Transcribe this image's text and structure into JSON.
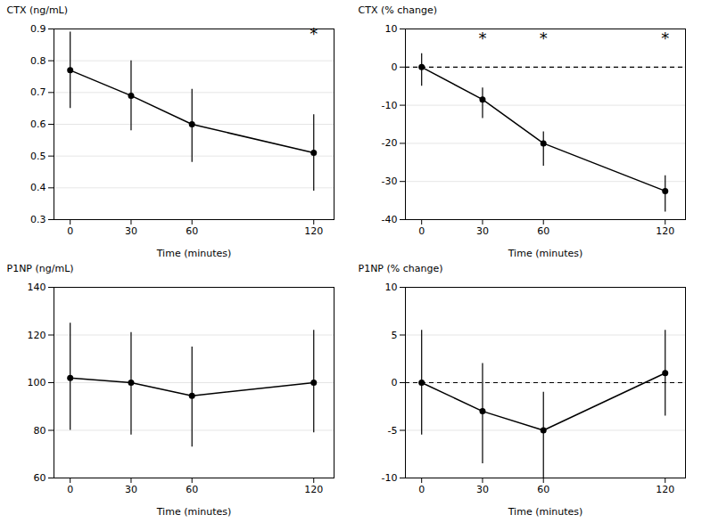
{
  "chart_data": [
    {
      "type": "line",
      "xlabel": "Time (minutes)",
      "ylabel": "CTX (ng/mL)",
      "x": [
        0,
        30,
        60,
        120
      ],
      "values": [
        0.77,
        0.69,
        0.6,
        0.51
      ],
      "error_upper": [
        0.89,
        0.8,
        0.71,
        0.63
      ],
      "error_lower": [
        0.65,
        0.58,
        0.48,
        0.39
      ],
      "color": "#000000",
      "marker": "circle",
      "line_style": "solid",
      "xlim": [
        -8,
        130
      ],
      "xticks": [
        0,
        30,
        60,
        120
      ],
      "ylim": [
        0.3,
        0.9
      ],
      "yticks": [
        0.3,
        0.4,
        0.5,
        0.6,
        0.7,
        0.8,
        0.9
      ],
      "grid": true,
      "annotations": [
        {
          "text": "*",
          "x": 120,
          "y": 0.885,
          "color": "#000000"
        }
      ]
    },
    {
      "type": "line",
      "xlabel": "Time (minutes)",
      "ylabel": "CTX (% change)",
      "x": [
        0,
        30,
        60,
        120
      ],
      "values": [
        0.0,
        -8.5,
        -20.0,
        -32.5
      ],
      "error_upper": [
        3.5,
        -5.5,
        -17.0,
        -28.5
      ],
      "error_lower": [
        -5.0,
        -13.5,
        -26.0,
        -38.0
      ],
      "color": "#000000",
      "marker": "circle",
      "line_style": "solid",
      "xlim": [
        -8,
        130
      ],
      "xticks": [
        0,
        30,
        60,
        120
      ],
      "ylim": [
        -40,
        10
      ],
      "yticks": [
        -40,
        -30,
        -20,
        -10,
        0,
        10
      ],
      "grid": true,
      "reference_lines": [
        {
          "y": 0,
          "line_style": "dashed",
          "color": "#000000"
        }
      ],
      "annotations": [
        {
          "text": "*",
          "x": 30,
          "y": 7.5,
          "color": "#000000"
        },
        {
          "text": "*",
          "x": 60,
          "y": 7.5,
          "color": "#000000"
        },
        {
          "text": "*",
          "x": 120,
          "y": 7.5,
          "color": "#000000"
        }
      ]
    },
    {
      "type": "line",
      "xlabel": "Time (minutes)",
      "ylabel": "P1NP (ng/mL)",
      "x": [
        0,
        30,
        60,
        120
      ],
      "values": [
        102.0,
        100.0,
        94.5,
        100.0
      ],
      "error_upper": [
        125.0,
        121.0,
        115.0,
        122.0
      ],
      "error_lower": [
        80.0,
        78.0,
        73.0,
        79.0
      ],
      "color": "#000000",
      "marker": "circle",
      "line_style": "solid",
      "xlim": [
        -8,
        130
      ],
      "xticks": [
        0,
        30,
        60,
        120
      ],
      "ylim": [
        60,
        140
      ],
      "yticks": [
        60,
        80,
        100,
        120,
        140
      ],
      "grid": true
    },
    {
      "type": "line",
      "xlabel": "Time (minutes)",
      "ylabel": "P1NP (% change)",
      "x": [
        0,
        30,
        60,
        120
      ],
      "values": [
        0.0,
        -3.0,
        -5.0,
        1.0
      ],
      "error_upper": [
        5.5,
        2.0,
        -1.0,
        5.5
      ],
      "error_lower": [
        -5.5,
        -8.5,
        -10.0,
        -3.5
      ],
      "color": "#000000",
      "marker": "circle",
      "line_style": "solid",
      "xlim": [
        -8,
        130
      ],
      "xticks": [
        0,
        30,
        60,
        120
      ],
      "ylim": [
        -10,
        10
      ],
      "yticks": [
        -10,
        -5,
        0,
        5,
        10
      ],
      "grid": true,
      "reference_lines": [
        {
          "y": 0,
          "line_style": "dashed",
          "color": "#000000"
        }
      ]
    }
  ]
}
